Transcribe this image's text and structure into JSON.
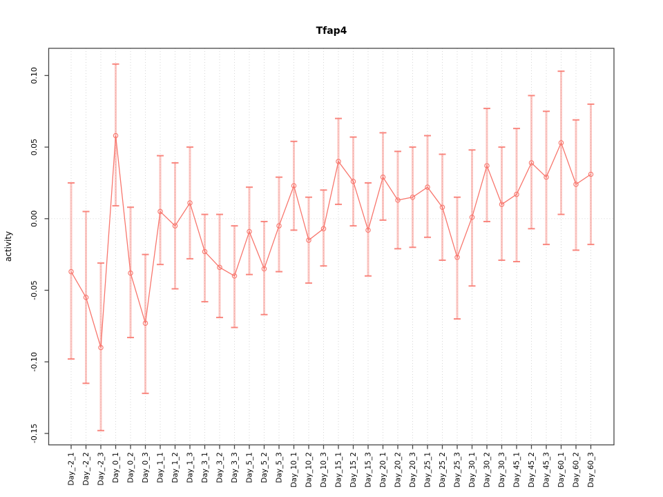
{
  "chart_data": {
    "type": "line",
    "title": "Tfap4",
    "ylabel": "activity",
    "xlabel": "",
    "legend": "none",
    "grid": {
      "vertical": "dotted at every category",
      "horizontal": "dotted at 0.00 only"
    },
    "categories": [
      "Day_-2_1",
      "Day_-2_2",
      "Day_-2_3",
      "Day_0_1",
      "Day_0_2",
      "Day_0_3",
      "Day_1_1",
      "Day_1_2",
      "Day_1_3",
      "Day_3_1",
      "Day_3_2",
      "Day_3_3",
      "Day_5_1",
      "Day_5_2",
      "Day_5_3",
      "Day_10_1",
      "Day_10_2",
      "Day_10_3",
      "Day_15_1",
      "Day_15_2",
      "Day_15_3",
      "Day_20_1",
      "Day_20_2",
      "Day_20_3",
      "Day_25_1",
      "Day_25_2",
      "Day_25_3",
      "Day_30_1",
      "Day_30_2",
      "Day_30_3",
      "Day_45_1",
      "Day_45_2",
      "Day_45_3",
      "Day_60_1",
      "Day_60_2",
      "Day_60_3"
    ],
    "series": [
      {
        "name": "activity",
        "values": [
          -0.037,
          -0.055,
          -0.09,
          0.058,
          -0.038,
          -0.073,
          0.005,
          -0.005,
          0.011,
          -0.023,
          -0.034,
          -0.04,
          -0.009,
          -0.035,
          -0.005,
          0.023,
          -0.015,
          -0.007,
          0.04,
          0.026,
          -0.008,
          0.029,
          0.013,
          0.015,
          0.022,
          0.008,
          -0.027,
          0.001,
          0.037,
          0.01,
          0.017,
          0.039,
          0.029,
          0.053,
          0.024,
          0.031
        ],
        "error_low": [
          -0.098,
          -0.115,
          -0.148,
          0.009,
          -0.083,
          -0.122,
          -0.032,
          -0.049,
          -0.028,
          -0.058,
          -0.069,
          -0.076,
          -0.039,
          -0.067,
          -0.037,
          -0.008,
          -0.045,
          -0.033,
          0.01,
          -0.005,
          -0.04,
          -0.001,
          -0.021,
          -0.02,
          -0.013,
          -0.029,
          -0.07,
          -0.047,
          -0.002,
          -0.029,
          -0.03,
          -0.007,
          -0.018,
          0.003,
          -0.022,
          -0.018
        ],
        "error_high": [
          0.025,
          0.005,
          -0.031,
          0.108,
          0.008,
          -0.025,
          0.044,
          0.039,
          0.05,
          0.003,
          0.003,
          -0.005,
          0.022,
          -0.002,
          0.029,
          0.054,
          0.015,
          0.02,
          0.07,
          0.057,
          0.025,
          0.06,
          0.047,
          0.05,
          0.058,
          0.045,
          0.015,
          0.048,
          0.077,
          0.05,
          0.063,
          0.086,
          0.075,
          0.103,
          0.069,
          0.08
        ]
      }
    ],
    "yticks": [
      -0.15,
      -0.1,
      -0.05,
      0.0,
      0.05,
      0.1
    ],
    "ytick_labels": [
      "-0.15",
      "-0.10",
      "-0.05",
      "0.00",
      "0.05",
      "0.10"
    ],
    "ylim": [
      -0.158,
      0.119
    ],
    "colors": {
      "series": "#F8766D",
      "error_bar_stem": "rgba(248,118,109,0.42)",
      "error_bar_cap": "rgba(248,118,109,0.88)",
      "gridline": "#d4d4d4",
      "frame": "#454545",
      "tick": "#454545",
      "text": "#000000"
    }
  }
}
